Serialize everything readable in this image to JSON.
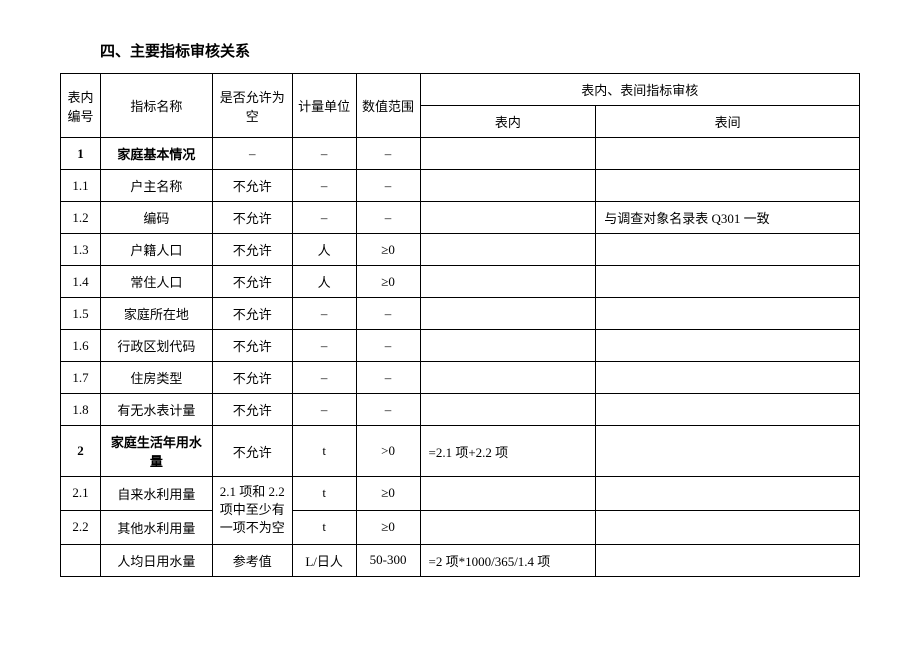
{
  "title": "四、主要指标审核关系",
  "table": {
    "header": {
      "col_id": "表内编号",
      "col_name": "指标名称",
      "col_allow": "是否允许为空",
      "col_unit": "计量单位",
      "col_range": "数值范围",
      "col_audit_group": "表内、表间指标审核",
      "col_inner": "表内",
      "col_inter": "表间"
    },
    "rows": [
      {
        "id": "1",
        "name": "家庭基本情况",
        "allow": "–",
        "unit": "–",
        "range": "–",
        "inner": "",
        "inter": "",
        "bold": true
      },
      {
        "id": "1.1",
        "name": "户主名称",
        "allow": "不允许",
        "unit": "–",
        "range": "–",
        "inner": "",
        "inter": ""
      },
      {
        "id": "1.2",
        "name": "编码",
        "allow": "不允许",
        "unit": "–",
        "range": "–",
        "inner": "",
        "inter": "与调查对象名录表 Q301 一致"
      },
      {
        "id": "1.3",
        "name": "户籍人口",
        "allow": "不允许",
        "unit": "人",
        "range": "≥0",
        "inner": "",
        "inter": ""
      },
      {
        "id": "1.4",
        "name": "常住人口",
        "allow": "不允许",
        "unit": "人",
        "range": "≥0",
        "inner": "",
        "inter": ""
      },
      {
        "id": "1.5",
        "name": "家庭所在地",
        "allow": "不允许",
        "unit": "–",
        "range": "–",
        "inner": "",
        "inter": ""
      },
      {
        "id": "1.6",
        "name": "行政区划代码",
        "allow": "不允许",
        "unit": "–",
        "range": "–",
        "inner": "",
        "inter": ""
      },
      {
        "id": "1.7",
        "name": "住房类型",
        "allow": "不允许",
        "unit": "–",
        "range": "–",
        "inner": "",
        "inter": ""
      },
      {
        "id": "1.8",
        "name": "有无水表计量",
        "allow": "不允许",
        "unit": "–",
        "range": "–",
        "inner": "",
        "inter": ""
      },
      {
        "id": "2",
        "name": "家庭生活年用水量",
        "allow": "不允许",
        "unit": "t",
        "range": ">0",
        "inner": "=2.1 项+2.2 项",
        "inter": "",
        "bold": true
      },
      {
        "id": "2.1",
        "name": "自来水利用量",
        "allow_merged_start": true,
        "allow_merged_text": "2.1 项和 2.2 项中至少有一项不为空",
        "unit": "t",
        "range": "≥0",
        "inner": "",
        "inter": ""
      },
      {
        "id": "2.2",
        "name": "其他水利用量",
        "allow_merged_skip": true,
        "unit": "t",
        "range": "≥0",
        "inner": "",
        "inter": ""
      },
      {
        "id": "",
        "name": "人均日用水量",
        "allow": "参考值",
        "unit": "L/日人",
        "range": "50-300",
        "inner": "=2 项*1000/365/1.4 项",
        "inter": ""
      }
    ]
  }
}
